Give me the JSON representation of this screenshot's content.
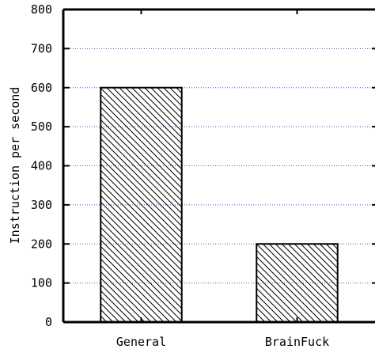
{
  "chart_data": {
    "type": "bar",
    "title": "",
    "xlabel": "",
    "ylabel": "Instruction per second",
    "categories": [
      "General",
      "BrainFuck"
    ],
    "values": [
      600,
      200
    ],
    "ylim": [
      0,
      800
    ],
    "yticks": [
      0,
      100,
      200,
      300,
      400,
      500,
      600,
      700,
      800
    ],
    "grid": true,
    "bar_fill": "diagonal-hatch",
    "colors": {
      "bar_stroke": "#000000",
      "grid": "#3a5fcd",
      "axis": "#000000"
    }
  }
}
